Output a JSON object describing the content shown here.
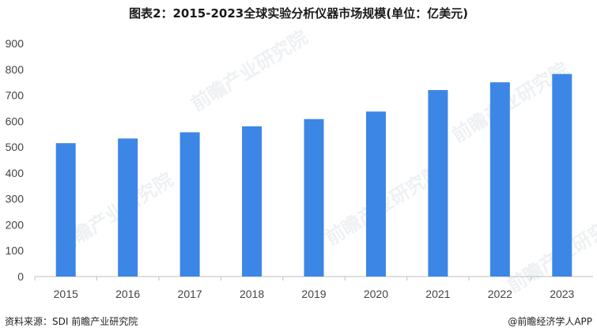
{
  "title": "图表2：2015-2023全球实验分析仪器市场规模(单位：亿美元)",
  "footer": {
    "source": "资料来源：SDI 前瞻产业研究院",
    "brand": "@前瞻经济学人APP"
  },
  "watermark": "前瞻产业研究院",
  "colors": {
    "bar": "#3c86e6",
    "axis": "#bfbfbf"
  },
  "chart_data": {
    "type": "bar",
    "title": "图表2：2015-2023全球实验分析仪器市场规模(单位：亿美元)",
    "categories": [
      "2015",
      "2016",
      "2017",
      "2018",
      "2019",
      "2020",
      "2021",
      "2022",
      "2023"
    ],
    "values": [
      515,
      533,
      557,
      580,
      608,
      637,
      720,
      750,
      782
    ],
    "ylim": [
      0,
      900
    ],
    "yticks": [
      0,
      100,
      200,
      300,
      400,
      500,
      600,
      700,
      800,
      900
    ],
    "xlabel": "",
    "ylabel": "",
    "grid": false,
    "legend": "none"
  }
}
